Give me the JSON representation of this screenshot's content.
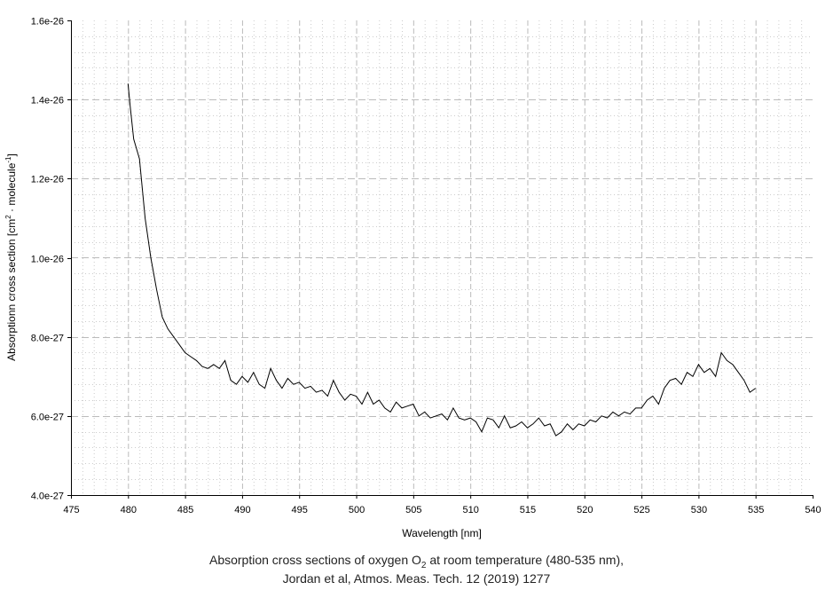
{
  "chart_data": {
    "type": "line",
    "title_line1_pre": "Absorption cross sections of oxygen O",
    "title_sub": "2",
    "title_line1_post": " at room temperature (480-535 nm),",
    "title_line2": "Jordan et al, Atmos. Meas. Tech. 12 (2019) 1277",
    "xlabel": "Wavelength [nm]",
    "ylabel_pre": "Absorptionn cross section [cm",
    "ylabel_sup1": "2",
    "ylabel_mid": " · molecule",
    "ylabel_sup2": "-1",
    "ylabel_post": "]",
    "xlim": [
      475,
      540
    ],
    "ylim": [
      4e-27,
      1.6e-26
    ],
    "y_unit_scale": 1e-27,
    "xticks": [
      475,
      480,
      485,
      490,
      495,
      500,
      505,
      510,
      515,
      520,
      525,
      530,
      535,
      540
    ],
    "xtick_labels": [
      "475",
      "480",
      "485",
      "490",
      "495",
      "500",
      "505",
      "510",
      "515",
      "520",
      "525",
      "530",
      "535",
      "540"
    ],
    "yticks": [
      4,
      6,
      8,
      10,
      12,
      14,
      16
    ],
    "ytick_labels": [
      "4.0e-27",
      "6.0e-27",
      "8.0e-27",
      "1.0e-26",
      "1.2e-26",
      "1.4e-26",
      "1.6e-26"
    ],
    "grid": true,
    "series": [
      {
        "name": "O2 cross section",
        "color": "#000000",
        "x": [
          480,
          480.2,
          480.5,
          481,
          481.5,
          482,
          482.5,
          483,
          483.5,
          484,
          484.5,
          485,
          485.5,
          486,
          486.5,
          487,
          487.5,
          488,
          488.5,
          489,
          489.5,
          490,
          490.5,
          491,
          491.5,
          492,
          492.5,
          493,
          493.5,
          494,
          494.5,
          495,
          495.5,
          496,
          496.5,
          497,
          497.5,
          498,
          498.5,
          499,
          499.5,
          500,
          500.5,
          501,
          501.5,
          502,
          502.5,
          503,
          503.5,
          504,
          504.5,
          505,
          505.5,
          506,
          506.5,
          507,
          507.5,
          508,
          508.5,
          509,
          509.5,
          510,
          510.5,
          511,
          511.5,
          512,
          512.5,
          513,
          513.5,
          514,
          514.5,
          515,
          515.5,
          516,
          516.5,
          517,
          517.5,
          518,
          518.5,
          519,
          519.5,
          520,
          520.5,
          521,
          521.5,
          522,
          522.5,
          523,
          523.5,
          524,
          524.5,
          525,
          525.5,
          526,
          526.5,
          527,
          527.5,
          528,
          528.5,
          529,
          529.5,
          530,
          530.5,
          531,
          531.5,
          532,
          532.5,
          533,
          533.5,
          534,
          534.5,
          535
        ],
        "y": [
          14.4,
          13.8,
          13.0,
          12.5,
          11.0,
          10.0,
          9.2,
          8.5,
          8.2,
          8.0,
          7.8,
          7.6,
          7.5,
          7.4,
          7.25,
          7.2,
          7.3,
          7.2,
          7.4,
          6.9,
          6.8,
          7.0,
          6.85,
          7.1,
          6.8,
          6.7,
          7.2,
          6.9,
          6.7,
          6.95,
          6.8,
          6.85,
          6.7,
          6.75,
          6.6,
          6.65,
          6.5,
          6.9,
          6.6,
          6.4,
          6.55,
          6.5,
          6.3,
          6.6,
          6.3,
          6.4,
          6.2,
          6.1,
          6.35,
          6.2,
          6.25,
          6.3,
          6.0,
          6.1,
          5.95,
          6.0,
          6.05,
          5.9,
          6.2,
          5.95,
          5.9,
          5.95,
          5.85,
          5.6,
          5.95,
          5.9,
          5.7,
          6.0,
          5.7,
          5.75,
          5.85,
          5.7,
          5.8,
          5.95,
          5.75,
          5.8,
          5.5,
          5.6,
          5.8,
          5.65,
          5.8,
          5.75,
          5.9,
          5.85,
          6.0,
          5.95,
          6.1,
          6.0,
          6.1,
          6.05,
          6.2,
          6.2,
          6.4,
          6.5,
          6.3,
          6.7,
          6.9,
          6.95,
          6.8,
          7.1,
          7.0,
          7.3,
          7.1,
          7.2,
          7.0,
          7.6,
          7.4,
          7.3,
          7.1,
          6.9,
          6.6,
          6.7
        ]
      }
    ]
  }
}
